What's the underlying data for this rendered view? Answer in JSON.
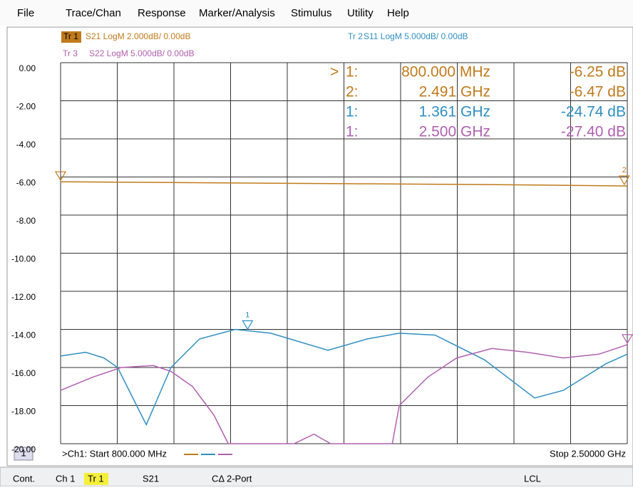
{
  "menu": [
    "File",
    "Trace/Chan",
    "Response",
    "Marker/Analysis",
    "Stimulus",
    "Utility",
    "Help"
  ],
  "trace_headers": [
    {
      "tag": "Tr 1",
      "text": "S21 LogM 2.000dB/ 0.00dB"
    },
    {
      "tag": "Tr 2",
      "text": "S11 LogM 5.000dB/ 0.00dB"
    },
    {
      "tag": "Tr 3",
      "text": "S22 LogM 5.000dB/ 0.00dB"
    }
  ],
  "plot": {
    "xlim": [
      0.8,
      2.5
    ],
    "ylim": [
      -20,
      0
    ],
    "yticks": [
      {
        "value": 0,
        "label": "0.00"
      },
      {
        "value": -2,
        "label": "-2.00"
      },
      {
        "value": -4,
        "label": "-4.00"
      },
      {
        "value": -6,
        "label": "-6.00"
      },
      {
        "value": -8,
        "label": "-8.00"
      },
      {
        "value": -10,
        "label": "-10.00"
      },
      {
        "value": -12,
        "label": "-12.00"
      },
      {
        "value": -14,
        "label": "-14.00"
      },
      {
        "value": -16,
        "label": "-16.00"
      },
      {
        "value": -18,
        "label": "-18.00"
      },
      {
        "value": -20,
        "label": "-20.00"
      }
    ],
    "xdivisions": 10,
    "traces": [
      {
        "color": "#c07a1c",
        "x": [
          0.8,
          1.2,
          1.65,
          2.1,
          2.5
        ],
        "values": [
          -6.25,
          -6.3,
          -6.35,
          -6.4,
          -6.47
        ]
      },
      {
        "color": "#2f8fc2",
        "x": [
          0.8,
          0.875,
          0.93,
          0.971,
          1.057,
          1.131,
          1.217,
          1.324,
          1.431,
          1.602,
          1.72,
          1.816,
          1.923,
          2.072,
          2.222,
          2.308,
          2.436,
          2.5
        ],
        "values": [
          -15.4,
          -15.2,
          -15.5,
          -16.0,
          -19.0,
          -16.0,
          -14.5,
          -14.0,
          -14.2,
          -15.1,
          -14.5,
          -14.2,
          -14.3,
          -15.6,
          -17.6,
          -17.2,
          -15.8,
          -15.3
        ]
      },
      {
        "color": "#b060b0",
        "x": [
          0.8,
          0.897,
          0.982,
          1.078,
          1.131,
          1.196,
          1.26,
          1.303,
          1.5,
          1.56,
          1.61,
          1.667,
          1.795,
          1.816,
          1.902,
          1.988,
          2.094,
          2.2,
          2.308,
          2.415,
          2.5
        ],
        "values": [
          -17.2,
          -16.5,
          -16.0,
          -15.9,
          -16.2,
          -17.0,
          -18.5,
          -20.0,
          -20.0,
          -19.5,
          -20.0,
          -20.0,
          -20.0,
          -18.0,
          -16.5,
          -15.5,
          -15.0,
          -15.2,
          -15.5,
          -15.3,
          -14.8
        ]
      }
    ],
    "markers": [
      {
        "prefix": ">",
        "id": "1:",
        "stimulus": "800.000 MHz",
        "response": "-6.25 dB",
        "x": 0.8,
        "trace": 0
      },
      {
        "id": "2:",
        "stimulus": "2.491 GHz",
        "response": "-6.47 dB",
        "x": 2.491,
        "trace": 0,
        "num": "2"
      },
      {
        "id": "1:",
        "stimulus": "1.361 GHz",
        "response": "-24.74 dB",
        "x": 1.361,
        "trace": 1,
        "num": "1"
      },
      {
        "id": "1:",
        "stimulus": "2.500 GHz",
        "response": "-27.40 dB",
        "x": 2.5,
        "trace": 2
      }
    ]
  },
  "status": {
    "channel": "1",
    "start": ">Ch1: Start  800.000 MHz",
    "stop": "Stop  2.50000 GHz"
  },
  "bottom_bar": [
    "Cont.",
    "Ch 1",
    "Tr 1",
    "S21",
    "CΔ 2-Port",
    "LCL"
  ]
}
